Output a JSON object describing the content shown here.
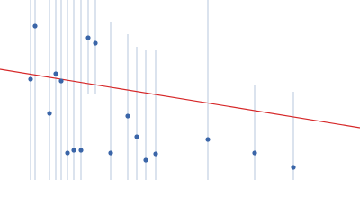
{
  "chart_data": {
    "type": "scatter",
    "xlim": [
      0,
      400
    ],
    "ylim": [
      0,
      200
    ],
    "series": [
      {
        "color": "#3a65a8",
        "error_color": "#b7c7dd",
        "x": [
          34,
          39,
          55,
          62,
          68,
          75,
          82,
          90,
          98,
          106,
          123,
          142,
          152,
          162,
          173,
          231,
          283,
          326
        ],
        "values": [
          112,
          171,
          74,
          118,
          110,
          30,
          33,
          33,
          158,
          152,
          30,
          71,
          48,
          22,
          29,
          45,
          30,
          14
        ],
        "errors": [
          120,
          180,
          130,
          120,
          120,
          175,
          170,
          170,
          63,
          57,
          146,
          91,
          100,
          122,
          115,
          155,
          75,
          84
        ]
      }
    ],
    "fit": {
      "color": "#d62728",
      "x": [
        0,
        400
      ],
      "values": [
        123,
        58
      ]
    }
  }
}
